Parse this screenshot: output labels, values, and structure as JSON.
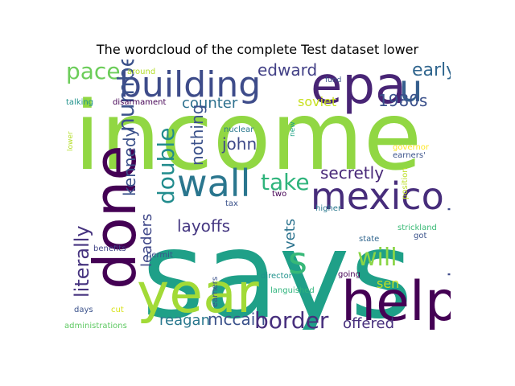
{
  "title": "The wordcloud of the complete Test dataset lower",
  "words": [
    {
      "text": "income",
      "color": "#91d743"
    },
    {
      "text": "says",
      "color": "#1fa088"
    },
    {
      "text": "epa",
      "color": "#482475"
    },
    {
      "text": "building",
      "color": "#3e4c8a"
    },
    {
      "text": "done",
      "color": "#440154"
    },
    {
      "text": "year",
      "color": "#a2da37"
    },
    {
      "text": "help",
      "color": "#440154"
    },
    {
      "text": "mexico",
      "color": "#472d7b"
    },
    {
      "text": "wall",
      "color": "#2a768e"
    },
    {
      "text": "u",
      "color": "#355e8d"
    },
    {
      "text": "pace",
      "color": "#6ccd5a"
    },
    {
      "text": "number",
      "color": "#3b528b"
    },
    {
      "text": "edward",
      "color": "#424086"
    },
    {
      "text": "early",
      "color": "#31668e"
    },
    {
      "text": "1980s",
      "color": "#3b518b"
    },
    {
      "text": "soviet",
      "color": "#c8e020"
    },
    {
      "text": "counter",
      "color": "#2d708e"
    },
    {
      "text": "kennedy",
      "color": "#3b518b"
    },
    {
      "text": "nothing",
      "color": "#3b528b"
    },
    {
      "text": "double",
      "color": "#228c8d"
    },
    {
      "text": "john",
      "color": "#3e4989"
    },
    {
      "text": "take",
      "color": "#2fb47c"
    },
    {
      "text": "secretly",
      "color": "#482878"
    },
    {
      "text": "wisconsin",
      "color": "#3e4a89"
    },
    {
      "text": "literally",
      "color": "#46337f"
    },
    {
      "text": "leaders",
      "color": "#3f4788"
    },
    {
      "text": "layoffs",
      "color": "#453781"
    },
    {
      "text": "vets",
      "color": "#2c738e"
    },
    {
      "text": "s",
      "color": "#37b878"
    },
    {
      "text": "will",
      "color": "#8bd646"
    },
    {
      "text": "sen",
      "color": "#c2df23"
    },
    {
      "text": "reagan",
      "color": "#2a788e"
    },
    {
      "text": "mccain",
      "color": "#3b528b"
    },
    {
      "text": "border",
      "color": "#472f7d"
    },
    {
      "text": "offered",
      "color": "#472f7d"
    },
    {
      "text": "around",
      "color": "#b5de2b"
    },
    {
      "text": "talking",
      "color": "#20928c"
    },
    {
      "text": "disarmament",
      "color": "#440154"
    },
    {
      "text": "fund",
      "color": "#3b528b"
    },
    {
      "text": "nuclear",
      "color": "#2a788e"
    },
    {
      "text": "new",
      "color": "#20a386"
    },
    {
      "text": "lower",
      "color": "#b5de2b"
    },
    {
      "text": "governor",
      "color": "#fde725"
    },
    {
      "text": "earners'",
      "color": "#3b528b"
    },
    {
      "text": "position",
      "color": "#bddf26"
    },
    {
      "text": "two",
      "color": "#440154"
    },
    {
      "text": "tax",
      "color": "#3b528b"
    },
    {
      "text": "higher",
      "color": "#2a788e"
    },
    {
      "text": "strickland",
      "color": "#3aba76"
    },
    {
      "text": "got",
      "color": "#3b528b"
    },
    {
      "text": "state",
      "color": "#31668e"
    },
    {
      "text": "permit",
      "color": "#3b528b"
    },
    {
      "text": "benefits",
      "color": "#414487"
    },
    {
      "text": "director",
      "color": "#20928c"
    },
    {
      "text": "going",
      "color": "#440154"
    },
    {
      "text": "languished",
      "color": "#2fb47c"
    },
    {
      "text": "earners",
      "color": "#3b528b"
    },
    {
      "text": "days",
      "color": "#3b528b"
    },
    {
      "text": "cut",
      "color": "#d8e219"
    },
    {
      "text": "administrations",
      "color": "#5ec962"
    }
  ]
}
